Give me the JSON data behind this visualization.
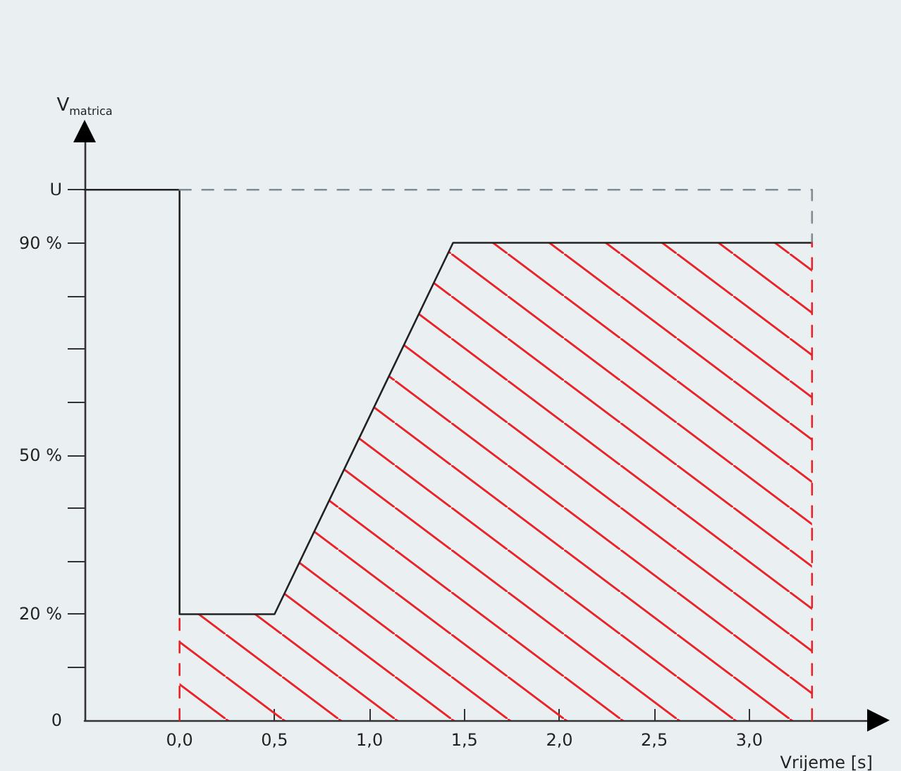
{
  "chart_data": {
    "type": "line",
    "xlabel": "Vrijeme [s]",
    "ylabel": "V$_{matrica}$",
    "xlim": [
      -0.5,
      3.65
    ],
    "ylim": [
      0,
      110
    ],
    "xticks": [
      {
        "value": 0,
        "label": "0,0"
      },
      {
        "value": 0.5,
        "label": "0,5"
      },
      {
        "value": 1,
        "label": "1,0"
      },
      {
        "value": 1.5,
        "label": "1,5"
      },
      {
        "value": 2,
        "label": "2,0"
      },
      {
        "value": 2.5,
        "label": "2,5"
      },
      {
        "value": 3,
        "label": "3,0"
      }
    ],
    "yticks": [
      {
        "value": 0,
        "label": "0"
      },
      {
        "value": 10,
        "label": null
      },
      {
        "value": 20,
        "label": "20 %"
      },
      {
        "value": 30,
        "label": null
      },
      {
        "value": 40,
        "label": null
      },
      {
        "value": 50,
        "label": "50 %"
      },
      {
        "value": 60,
        "label": null
      },
      {
        "value": 70,
        "label": null
      },
      {
        "value": 80,
        "label": null
      },
      {
        "value": 90,
        "label": "90 %"
      },
      {
        "value": 100,
        "label": "U"
      }
    ],
    "grid": false,
    "marker": "none",
    "series": [
      {
        "type": "area",
        "color": "#e8232a",
        "x": [
          0,
          0.5,
          1.44,
          3.33
        ],
        "values": [
          20,
          20,
          90,
          90
        ],
        "line_style": "none"
      },
      {
        "type": "line",
        "color": "#222222",
        "x": [
          -0.5,
          0,
          0,
          0.5,
          1.44,
          3.33
        ],
        "values": [
          100,
          100,
          20,
          20,
          90,
          90
        ],
        "line_style": "solid"
      },
      {
        "type": "line",
        "color": "#7f8c96",
        "x": [
          0,
          3.33,
          3.33
        ],
        "values": [
          100,
          100,
          90
        ],
        "line_style": "dashed"
      },
      {
        "type": "line",
        "color": "#e8232a",
        "x": [
          0,
          0
        ],
        "values": [
          0,
          20
        ],
        "line_style": "dashed"
      },
      {
        "type": "line",
        "color": "#e8232a",
        "x": [
          3.33,
          3.33
        ],
        "values": [
          0,
          90
        ],
        "line_style": "dashed"
      }
    ]
  }
}
